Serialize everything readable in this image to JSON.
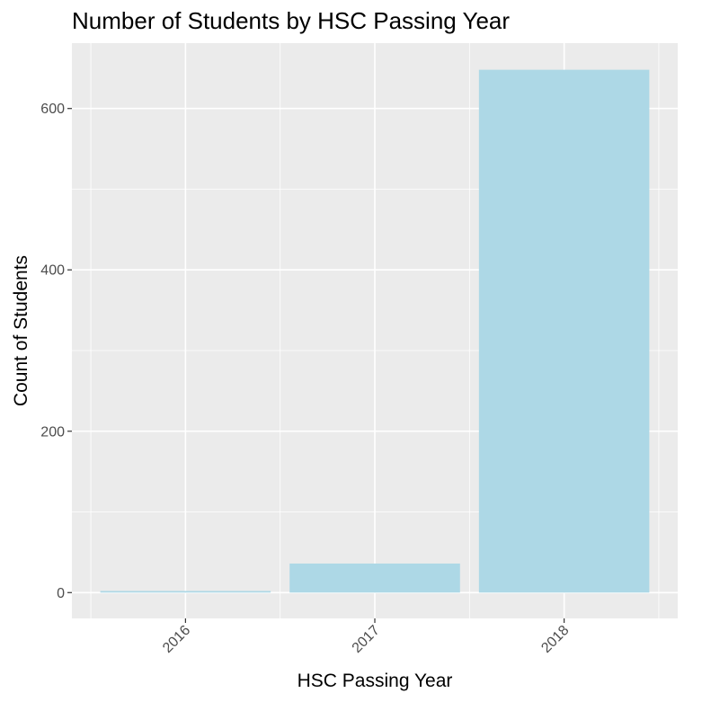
{
  "chart_data": {
    "type": "bar",
    "title": "Number of Students by HSC Passing Year",
    "xlabel": "HSC Passing Year",
    "ylabel": "Count of Students",
    "categories": [
      "2016",
      "2017",
      "2018"
    ],
    "values": [
      2,
      36,
      648
    ],
    "ylim": [
      -32,
      681
    ],
    "yticks": [
      0,
      200,
      400,
      600
    ],
    "y_minor_ticks": [
      100,
      300,
      500
    ],
    "grid": true,
    "bar_color": "#add8e6",
    "panel_color": "#ebebeb",
    "x_tick_rotation_deg": 45
  }
}
